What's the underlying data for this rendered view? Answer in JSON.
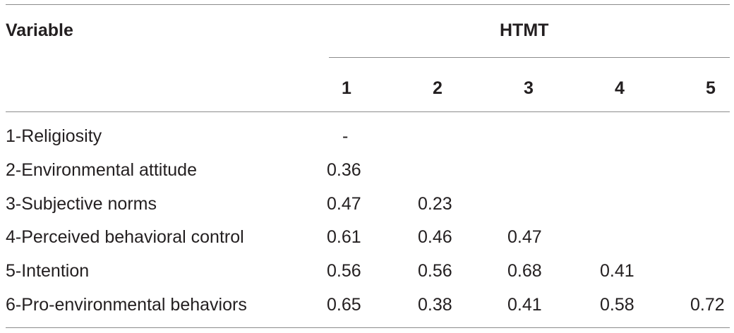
{
  "table": {
    "variable_header": "Variable",
    "group_header": "HTMT",
    "columns": [
      "1",
      "2",
      "3",
      "4",
      "5"
    ],
    "rows": [
      {
        "label": "1-Religiosity",
        "values": [
          "-",
          "",
          "",
          "",
          ""
        ]
      },
      {
        "label": "2-Environmental attitude",
        "values": [
          "0.36",
          "",
          "",
          "",
          ""
        ]
      },
      {
        "label": "3-Subjective norms",
        "values": [
          "0.47",
          "0.23",
          "",
          "",
          ""
        ]
      },
      {
        "label": "4-Perceived behavioral control",
        "values": [
          "0.61",
          "0.46",
          "0.47",
          "",
          ""
        ]
      },
      {
        "label": "5-Intention",
        "values": [
          "0.56",
          "0.56",
          "0.68",
          "0.41",
          ""
        ]
      },
      {
        "label": "6-Pro-environmental behaviors",
        "values": [
          "0.65",
          "0.38",
          "0.41",
          "0.58",
          "0.72"
        ]
      }
    ]
  }
}
